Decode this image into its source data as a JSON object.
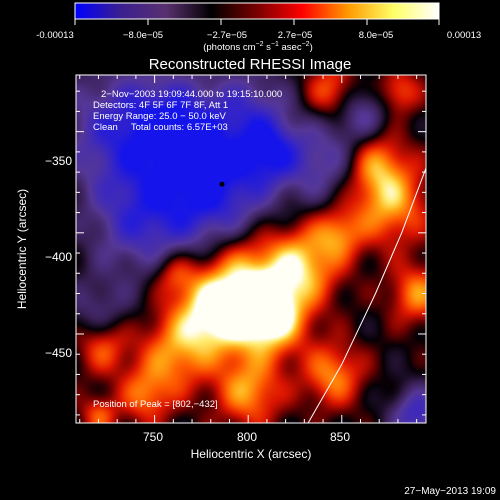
{
  "colorbar": {
    "ticks": [
      "-0.00013",
      "−8.0e−05",
      "−2.7e−05",
      "2.7e−05",
      "8.0e−05",
      "0.00013"
    ],
    "units_prefix": "(photons cm",
    "units_exp1": "−2",
    "units_mid": " s",
    "units_exp2": "−1",
    "units_mid2": " asec",
    "units_exp3": "−2",
    "units_suffix": ")",
    "stops": [
      "#0000ff",
      "#3a1f8f",
      "#5a3070",
      "#000000",
      "#7a0000",
      "#ff0000",
      "#ff9900",
      "#ffff66",
      "#ffffff"
    ]
  },
  "chart_data": {
    "type": "heatmap",
    "title": "Reconstructed RHESSI Image",
    "xlabel": "Heliocentric X (arcsec)",
    "ylabel": "Heliocentric Y (arcsec)",
    "xlim": [
      708,
      895
    ],
    "ylim": [
      -494,
      -322
    ],
    "x_ticks": [
      750,
      800,
      850
    ],
    "x_tick_labels": [
      "750",
      "800",
      "850"
    ],
    "y_ticks": [
      -350,
      -400,
      -450
    ],
    "y_tick_labels": [
      "−350",
      "−400",
      "−450"
    ],
    "value_range": [
      -0.00013,
      0.00013
    ],
    "annotations": [
      "2−Nov−2003 19:09:44.000 to 19:15:10.000",
      "Detectors: 4F 5F 6F 7F 8F, Att 1",
      "Energy Range: 25.0 − 50.0 keV",
      "Clean     Total counts: 6.57E+03"
    ],
    "peak_label": "Position of Peak = [802,−432]",
    "marked_point": {
      "x": 786,
      "y": -376
    },
    "limb_curve": [
      [
        832,
        -494
      ],
      [
        850,
        -465
      ],
      [
        868,
        -430
      ],
      [
        882,
        -400
      ],
      [
        895,
        -368
      ]
    ],
    "intensity_blobs": [
      {
        "x": 780,
        "y": -378,
        "v": -1.0,
        "r": 42
      },
      {
        "x": 730,
        "y": -350,
        "v": -0.7,
        "r": 40
      },
      {
        "x": 760,
        "y": -345,
        "v": -0.6,
        "r": 30
      },
      {
        "x": 800,
        "y": -340,
        "v": -0.5,
        "r": 30
      },
      {
        "x": 840,
        "y": -365,
        "v": -0.5,
        "r": 26
      },
      {
        "x": 812,
        "y": -360,
        "v": -0.6,
        "r": 20
      },
      {
        "x": 740,
        "y": -395,
        "v": -0.55,
        "r": 34
      },
      {
        "x": 720,
        "y": -440,
        "v": -0.4,
        "r": 22
      },
      {
        "x": 860,
        "y": -340,
        "v": -0.5,
        "r": 20
      },
      {
        "x": 890,
        "y": -490,
        "v": -0.7,
        "r": 18
      },
      {
        "x": 845,
        "y": -330,
        "v": 0.6,
        "r": 18
      },
      {
        "x": 880,
        "y": -330,
        "v": 0.55,
        "r": 14
      },
      {
        "x": 875,
        "y": -385,
        "v": 0.75,
        "r": 26
      },
      {
        "x": 868,
        "y": -365,
        "v": 0.55,
        "r": 20
      },
      {
        "x": 890,
        "y": -430,
        "v": 0.65,
        "r": 18
      },
      {
        "x": 800,
        "y": -425,
        "v": 0.95,
        "r": 34
      },
      {
        "x": 780,
        "y": -440,
        "v": 0.85,
        "r": 26
      },
      {
        "x": 812,
        "y": -442,
        "v": 0.9,
        "r": 22
      },
      {
        "x": 830,
        "y": -415,
        "v": 0.7,
        "r": 24
      },
      {
        "x": 760,
        "y": -460,
        "v": 0.6,
        "r": 24
      },
      {
        "x": 722,
        "y": -455,
        "v": 0.6,
        "r": 18
      },
      {
        "x": 745,
        "y": -480,
        "v": 0.55,
        "r": 18
      },
      {
        "x": 800,
        "y": -478,
        "v": 0.7,
        "r": 22
      },
      {
        "x": 845,
        "y": -470,
        "v": 0.65,
        "r": 20
      },
      {
        "x": 848,
        "y": -400,
        "v": 0.55,
        "r": 16
      },
      {
        "x": 760,
        "y": -420,
        "v": 0.45,
        "r": 14
      },
      {
        "x": 720,
        "y": -490,
        "v": 0.5,
        "r": 12
      }
    ]
  },
  "footer": {
    "timestamp": "27−May−2013 19:09"
  }
}
